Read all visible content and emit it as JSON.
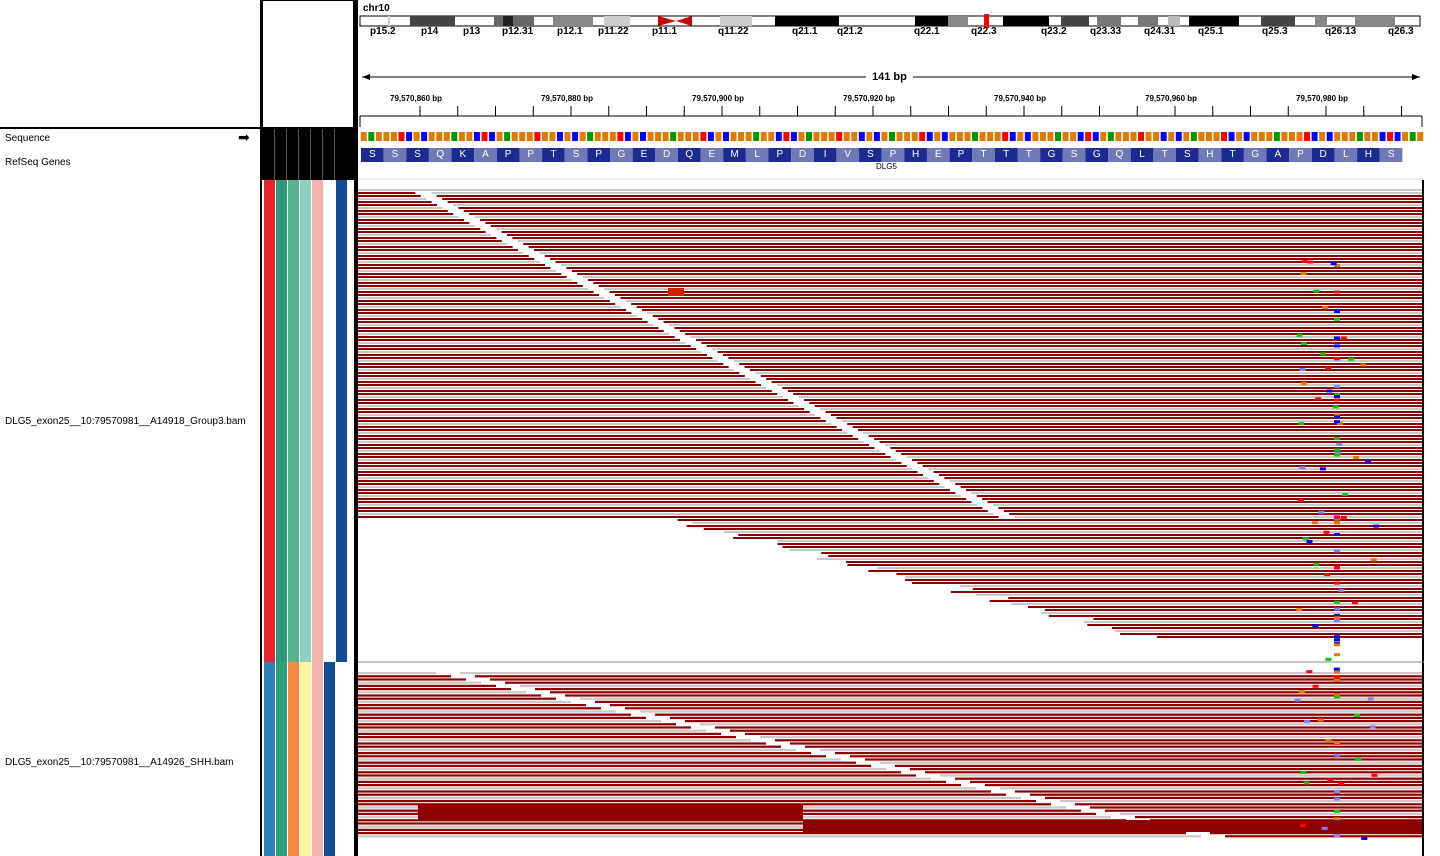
{
  "colors": {
    "read_fill": "#8b0000",
    "read_alt": "#c8c8c8",
    "gene_dark": "#1b2b8f",
    "gene_light": "#6e79b5"
  },
  "ideogram": {
    "chromosome": "chr10",
    "bands": [
      "p15.2",
      "p14",
      "p13",
      "p12.31",
      "p12.1",
      "p11.22",
      "p11.1",
      "q11.22",
      "q21.1",
      "q21.2",
      "q22.1",
      "q22.3",
      "q23.2",
      "q23.33",
      "q24.31",
      "q25.1",
      "q25.3",
      "q26.13",
      "q26.3"
    ]
  },
  "ruler": {
    "span_label": "141 bp",
    "ticks": [
      "79,570,860 bp",
      "79,570,880 bp",
      "79,570,900 bp",
      "79,570,920 bp",
      "79,570,940 bp",
      "79,570,960 bp",
      "79,570,980 bp"
    ]
  },
  "tracks": {
    "sequence_label": "Sequence",
    "refseq_label": "RefSeq Genes",
    "gene_name": "DLG5",
    "amino_acids": [
      "S",
      "S",
      "S",
      "Q",
      "K",
      "A",
      "P",
      "P",
      "T",
      "S",
      "P",
      "G",
      "E",
      "D",
      "Q",
      "E",
      "M",
      "L",
      "P",
      "D",
      "I",
      "V",
      "S",
      "P",
      "H",
      "E",
      "P",
      "T",
      "T",
      "T",
      "G",
      "S",
      "G",
      "Q",
      "L",
      "T",
      "S",
      "H",
      "T",
      "G",
      "A",
      "P",
      "D",
      "L",
      "H",
      "S"
    ],
    "bam1_label": "DLG5_exon25__10:79570981__A14918_Group3.bam",
    "bam2_label": "DLG5_exon25__10:79570981__A14926_SHH.bam"
  },
  "attribute_columns": {
    "bam1": [
      "#e8262a",
      "#2c9a7a",
      "#57b38f",
      "#8fd1c1",
      "#f6b2ad",
      "#ffffff",
      "#124e96"
    ],
    "bam2": [
      "#3180b8",
      "#2f9e79",
      "#f5883a",
      "#fff6a0",
      "#f6b2ad",
      "#124e96",
      "#ffffff"
    ]
  }
}
